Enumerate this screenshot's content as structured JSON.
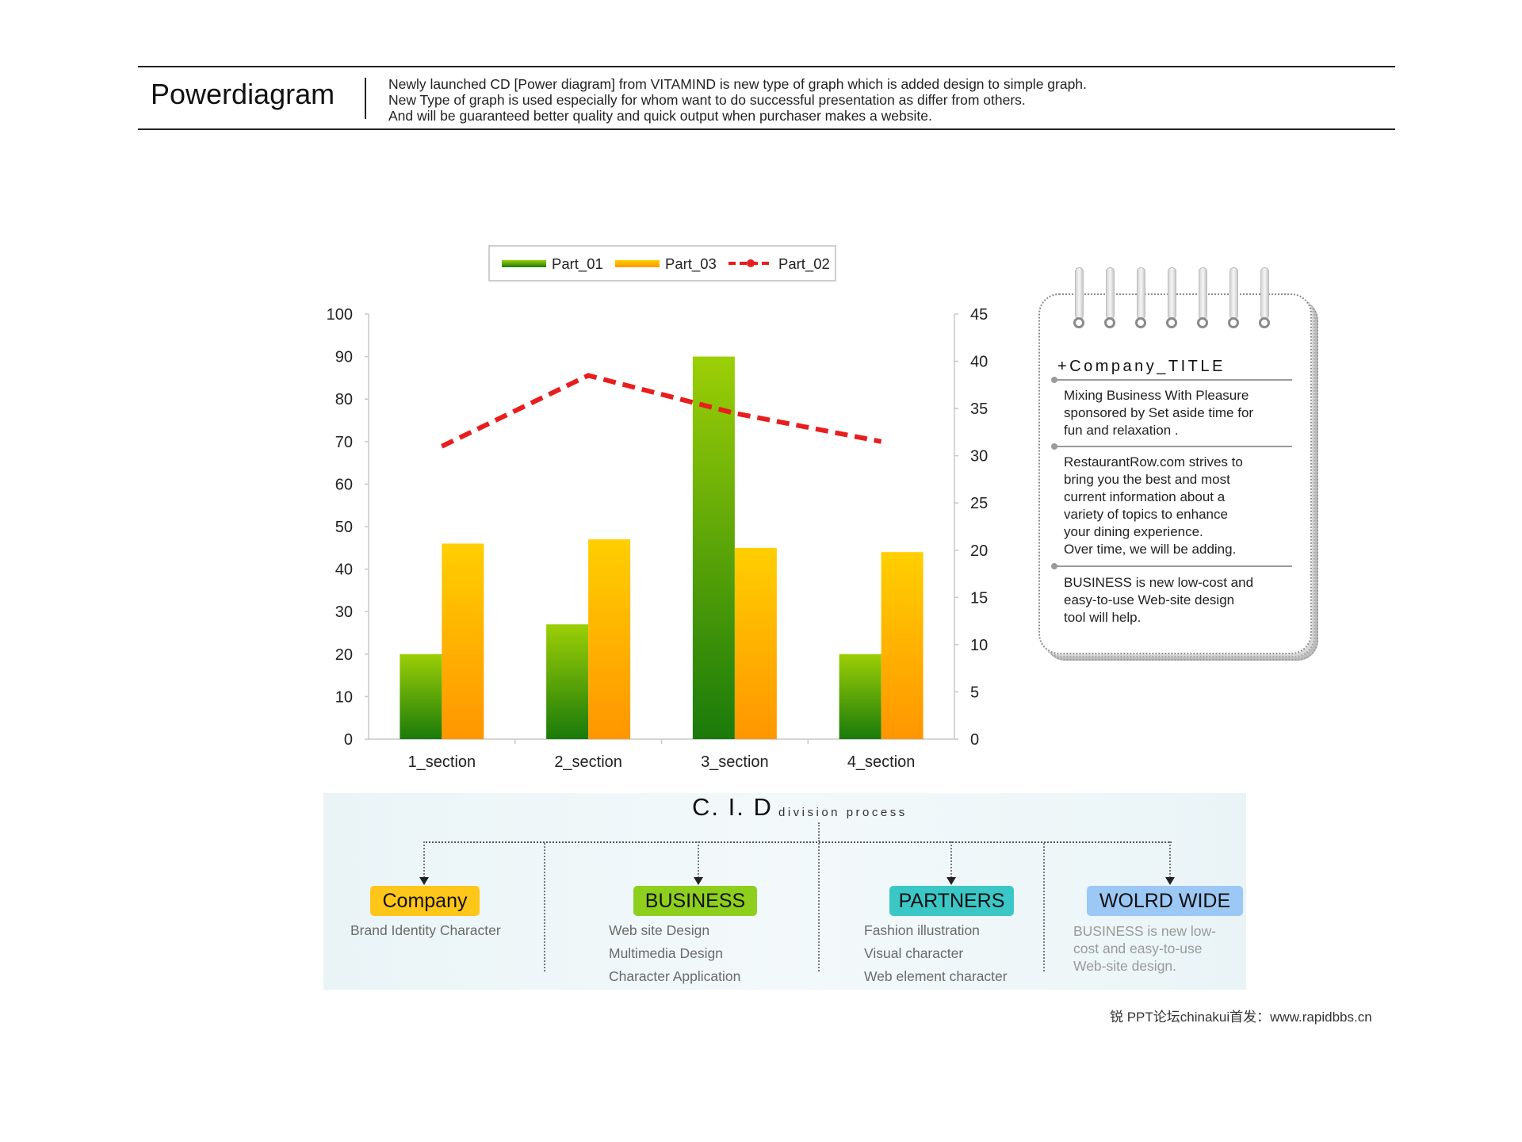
{
  "header": {
    "title": "Powerdiagram",
    "desc": [
      "Newly launched CD [Power diagram] from VITAMIND is new type of graph which is added design to simple graph.",
      "New Type of graph is used especially for whom want to do successful presentation as differ from others.",
      "And will be guaranteed better quality and quick output when purchaser makes a website."
    ]
  },
  "chart_data": {
    "type": "bar",
    "categories": [
      "1_section",
      "2_section",
      "3_section",
      "4_section"
    ],
    "series": [
      {
        "name": "Part_01",
        "type": "bar",
        "axis": "left",
        "values": [
          20,
          27,
          90,
          20
        ]
      },
      {
        "name": "Part_03",
        "type": "bar",
        "axis": "left",
        "values": [
          46,
          47,
          45,
          44
        ]
      },
      {
        "name": "Part_02",
        "type": "line",
        "style": "dashed",
        "axis": "right",
        "values": [
          31,
          38.5,
          34.5,
          31.5
        ]
      }
    ],
    "ylim_left": [
      0,
      100
    ],
    "yticks_left": [
      0,
      10,
      20,
      30,
      40,
      50,
      60,
      70,
      80,
      90,
      100
    ],
    "ylim_right": [
      0,
      45
    ],
    "yticks_right": [
      0,
      5,
      10,
      15,
      20,
      25,
      30,
      35,
      40,
      45
    ],
    "legend": [
      "Part_01",
      "Part_03",
      "Part_02"
    ],
    "legend_position": "top",
    "grid": false,
    "colors": {
      "Part_01": "#5aae0e",
      "Part_03": "#ffb400",
      "Part_02": "#e81e1e"
    }
  },
  "notebook": {
    "title": "+Company_TITLE",
    "block1": [
      "Mixing Business With Pleasure",
      "sponsored by Set aside time for",
      "fun and relaxation ."
    ],
    "block2": [
      "RestaurantRow.com strives to",
      "bring you the best and most",
      "current information about a",
      "variety of topics to enhance",
      "your dining experience.",
      "Over time, we will be adding."
    ],
    "block3": [
      "BUSINESS is new low-cost and",
      "easy-to-use Web-site design",
      "tool will help."
    ]
  },
  "cid": {
    "title": "C. I. D",
    "subtitle": "division process",
    "columns": [
      {
        "label": "Company",
        "color": "#ffc61a",
        "items": [
          "Brand Identity Character"
        ]
      },
      {
        "label": "BUSINESS",
        "color": "#8ecf1e",
        "items": [
          "Web site Design",
          "Multimedia Design",
          "Character Application"
        ]
      },
      {
        "label": "PARTNERS",
        "color": "#3cc7c7",
        "items": [
          "Fashion illustration",
          "Visual character",
          "Web element character"
        ]
      },
      {
        "label": "WOLRD WIDE",
        "color": "#9cc8f5",
        "items": [
          "BUSINESS is new low-",
          "cost and easy-to-use",
          "Web-site design."
        ]
      }
    ]
  },
  "footer": "锐  PPT论坛chinakui首发：www.rapidbbs.cn"
}
